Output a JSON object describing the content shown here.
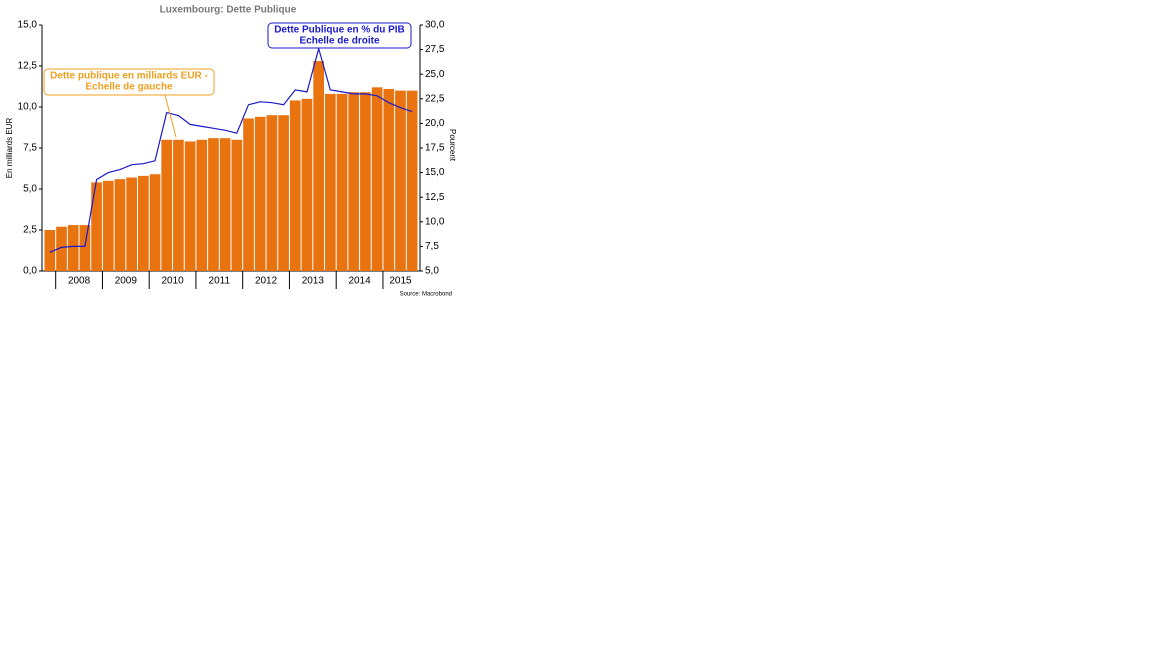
{
  "chart_data": {
    "type": "bar-line",
    "title": "Luxembourg: Dette Publique",
    "y_label": "En milliards EUR",
    "y2_label": "Pourcent",
    "source": "Source: Macrobond",
    "categories": [
      null,
      null,
      null,
      null,
      null,
      null,
      null,
      null,
      null,
      null,
      null,
      null,
      null,
      null,
      null,
      null,
      null,
      null,
      null,
      null,
      null,
      null,
      null,
      null,
      null,
      null,
      null,
      null,
      null,
      null,
      null,
      null
    ],
    "year_labels": [
      "2008",
      "2009",
      "2010",
      "2011",
      "2012",
      "2013",
      "2014",
      "2015"
    ],
    "series": [
      {
        "name": "Dette publique en milliards EUR  -",
        "color": "#e8730f",
        "values": [
          2.5,
          2.7,
          2.8,
          2.8,
          5.4,
          5.5,
          5.6,
          5.7,
          5.8,
          5.9,
          8.0,
          8.0,
          7.9,
          8.0,
          8.1,
          8.1,
          8.0,
          9.3,
          9.4,
          9.5,
          9.5,
          10.4,
          10.5,
          12.8,
          10.8,
          10.8,
          10.9,
          10.9,
          11.2,
          11.1,
          11.0,
          11.0
        ]
      },
      {
        "name": "Dette Publique en % du PIB",
        "color": "#1a1acc",
        "axis": "y2",
        "values": [
          6.9,
          7.4,
          7.5,
          7.5,
          14.3,
          15.0,
          15.3,
          15.8,
          15.9,
          16.2,
          21.1,
          20.8,
          19.9,
          19.7,
          19.5,
          19.3,
          19.0,
          21.9,
          22.2,
          22.1,
          21.9,
          23.4,
          23.2,
          27.6,
          23.4,
          23.2,
          23.0,
          23.0,
          22.8,
          22.1,
          21.6,
          21.2
        ]
      }
    ],
    "annotations": [
      {
        "lines": [
          "Dette publique en milliards EUR  -",
          "Echelle de gauche"
        ],
        "color": "#f0a020"
      },
      {
        "lines": [
          "Dette Publique en % du PIB",
          "Echelle de droite"
        ],
        "color": "#1a1acc"
      }
    ],
    "ylim": [
      0,
      15
    ],
    "yticks": [
      {
        "value": 0,
        "label": "0,0"
      },
      {
        "value": 2.5,
        "label": "2,5"
      },
      {
        "value": 5,
        "label": "5,0"
      },
      {
        "value": 7.5,
        "label": "7,5"
      },
      {
        "value": 10,
        "label": "10,0"
      },
      {
        "value": 12.5,
        "label": "12,5"
      },
      {
        "value": 15,
        "label": "15,0"
      }
    ],
    "y2lim": [
      5,
      30
    ],
    "y2ticks": [
      {
        "value": 5,
        "label": "5,0"
      },
      {
        "value": 7.5,
        "label": "7,5"
      },
      {
        "value": 10,
        "label": "10,0"
      },
      {
        "value": 12.5,
        "label": "12,5"
      },
      {
        "value": 15,
        "label": "15,0"
      },
      {
        "value": 17.5,
        "label": "17,5"
      },
      {
        "value": 20,
        "label": "20,0"
      },
      {
        "value": 22.5,
        "label": "22,5"
      },
      {
        "value": 25,
        "label": "25,0"
      },
      {
        "value": 27.5,
        "label": "27,5"
      },
      {
        "value": 30,
        "label": "30,0"
      }
    ]
  }
}
